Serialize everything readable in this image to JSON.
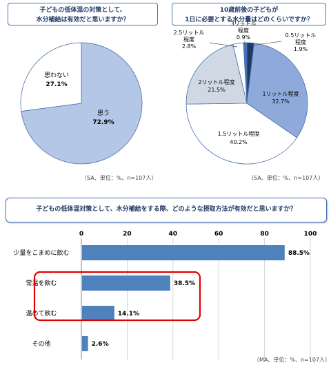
{
  "chart_data": [
    {
      "type": "pie",
      "title_lines": [
        "子どもの低体温の対策として、",
        "水分補給は有効だと思いますか？"
      ],
      "slices": [
        {
          "label": "思う",
          "value": 72.9,
          "value_label": "72.9%",
          "color": "#b4c7e7"
        },
        {
          "label": "思わない",
          "value": 27.1,
          "value_label": "27.1%",
          "color": "#ffffff"
        }
      ],
      "note": "（SA、単位：%、n=107人）"
    },
    {
      "type": "pie",
      "title_lines": [
        "10歳前後の子どもが",
        "1日に必要とする水分量はどのくらいですか？"
      ],
      "slices": [
        {
          "label": "0.5リットル程度",
          "value": 1.9,
          "value_label": "1.9%",
          "color": "#1f3864"
        },
        {
          "label": "1リットル程度",
          "value": 32.7,
          "value_label": "32.7%",
          "color": "#8eaadb"
        },
        {
          "label": "1.5リットル程度",
          "value": 40.2,
          "value_label": "40.2%",
          "color": "#ffffff"
        },
        {
          "label": "2リットル程度",
          "value": 21.5,
          "value_label": "21.5%",
          "color": "#d0d8e4"
        },
        {
          "label": "2.5リットル程度",
          "value": 2.8,
          "value_label": "2.8%",
          "color": "#ffffff"
        },
        {
          "label": "3リットル程度",
          "value": 0.9,
          "value_label": "0.9%",
          "color": "#4472c4"
        }
      ],
      "note": "（SA、単位：%、n=107人）"
    },
    {
      "type": "bar",
      "orientation": "horizontal",
      "title": "子どもの低体温対策として、水分補給をする際、どのような摂取方法が有効だと思いますか？",
      "categories": [
        "少量をこまめに飲む",
        "常温を飲む",
        "温めて飲む",
        "その他"
      ],
      "values": [
        88.5,
        38.5,
        14.1,
        2.6
      ],
      "value_labels": [
        "88.5%",
        "38.5%",
        "14.1%",
        "2.6%"
      ],
      "xlim": [
        0,
        100
      ],
      "ticks": [
        "0",
        "20",
        "40",
        "60",
        "80",
        "100"
      ],
      "bar_color": "#4f81bd",
      "highlight_color": "#e00000",
      "highlighted_categories": [
        "常温を飲む",
        "温めて飲む"
      ],
      "note": "（MA、単位：%、n=107人）"
    }
  ]
}
